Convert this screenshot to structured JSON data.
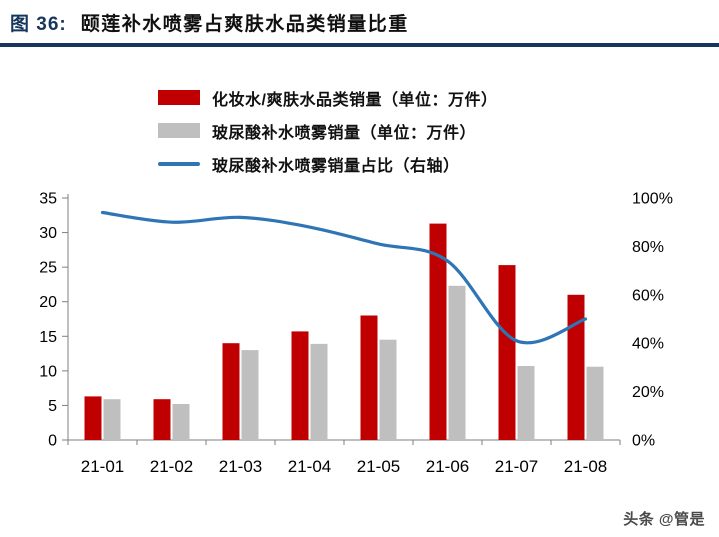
{
  "header": {
    "prefix": "图 36:",
    "title": "颐莲补水喷雾占爽肤水品类销量比重",
    "accent_color": "#16365C"
  },
  "legend": [
    {
      "type": "bar",
      "color": "#C00000",
      "label": "化妆水/爽肤水品类销量（单位：万件）"
    },
    {
      "type": "bar",
      "color": "#BFBFBF",
      "label": "玻尿酸补水喷雾销量（单位：万件）"
    },
    {
      "type": "line",
      "color": "#2E75B6",
      "label": "玻尿酸补水喷雾销量占比（右轴）"
    }
  ],
  "chart_data": {
    "type": "bar+line",
    "title": "颐莲补水喷雾占爽肤水品类销量比重",
    "categories": [
      "21-01",
      "21-02",
      "21-03",
      "21-04",
      "21-05",
      "21-06",
      "21-07",
      "21-08"
    ],
    "series": [
      {
        "name": "化妆水/爽肤水品类销量（单位：万件）",
        "type": "bar",
        "axis": "left",
        "color": "#C00000",
        "values": [
          6.3,
          5.9,
          14.0,
          15.7,
          18.0,
          31.3,
          25.3,
          21.0
        ]
      },
      {
        "name": "玻尿酸补水喷雾销量（单位：万件）",
        "type": "bar",
        "axis": "left",
        "color": "#BFBFBF",
        "values": [
          5.9,
          5.2,
          13.0,
          13.9,
          14.5,
          22.3,
          10.7,
          10.6
        ]
      },
      {
        "name": "玻尿酸补水喷雾销量占比（右轴）",
        "type": "line",
        "axis": "right",
        "color": "#2E75B6",
        "values": [
          94,
          90,
          92,
          88,
          81,
          74,
          41,
          50
        ]
      }
    ],
    "left_axis": {
      "min": 0,
      "max": 35,
      "step": 5,
      "ticks": [
        "0",
        "5",
        "10",
        "15",
        "20",
        "25",
        "30",
        "35"
      ]
    },
    "right_axis": {
      "min": 0,
      "max": 100,
      "step": 20,
      "ticks": [
        "0%",
        "20%",
        "40%",
        "60%",
        "80%",
        "100%"
      ]
    },
    "grid": false,
    "legend_position": "top"
  },
  "watermark": "头条 @管是"
}
